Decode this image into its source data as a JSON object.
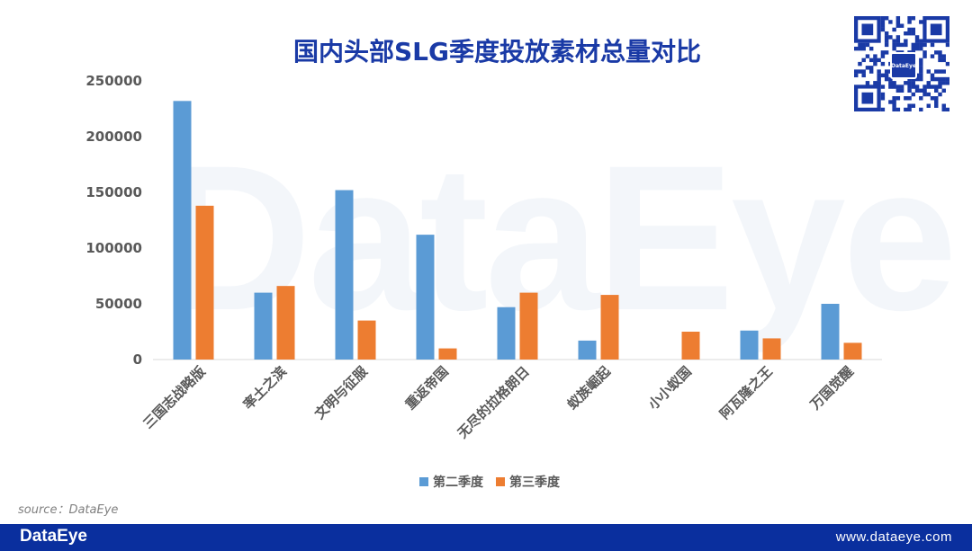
{
  "watermark": "DataEye",
  "chart_data": {
    "type": "bar",
    "title": "国内头部SLG季度投放素材总量对比",
    "xlabel": "",
    "ylabel": "",
    "ylim": [
      0,
      250000
    ],
    "yticks": [
      "0",
      "50000",
      "100000",
      "150000",
      "200000",
      "250000"
    ],
    "categories": [
      "三国志战略版",
      "率土之滨",
      "文明与征服",
      "重返帝国",
      "无尽的拉格朗日",
      "蚁族崛起",
      "小小蚁国",
      "阿瓦隆之王",
      "万国觉醒"
    ],
    "series": [
      {
        "name": "第二季度",
        "color": "#5b9bd5",
        "values": [
          232000,
          60000,
          152000,
          112000,
          47000,
          17000,
          0,
          26000,
          50000
        ]
      },
      {
        "name": "第三季度",
        "color": "#ed7d31",
        "values": [
          138000,
          66000,
          35000,
          10000,
          60000,
          58000,
          25000,
          19000,
          15000
        ]
      }
    ],
    "grid": false,
    "legend": "bottom"
  },
  "qr": {
    "logo_text": "DataEye"
  },
  "source": "source：DataEye",
  "footer": {
    "logo": "DataEye",
    "url": "www.dataeye.com"
  }
}
